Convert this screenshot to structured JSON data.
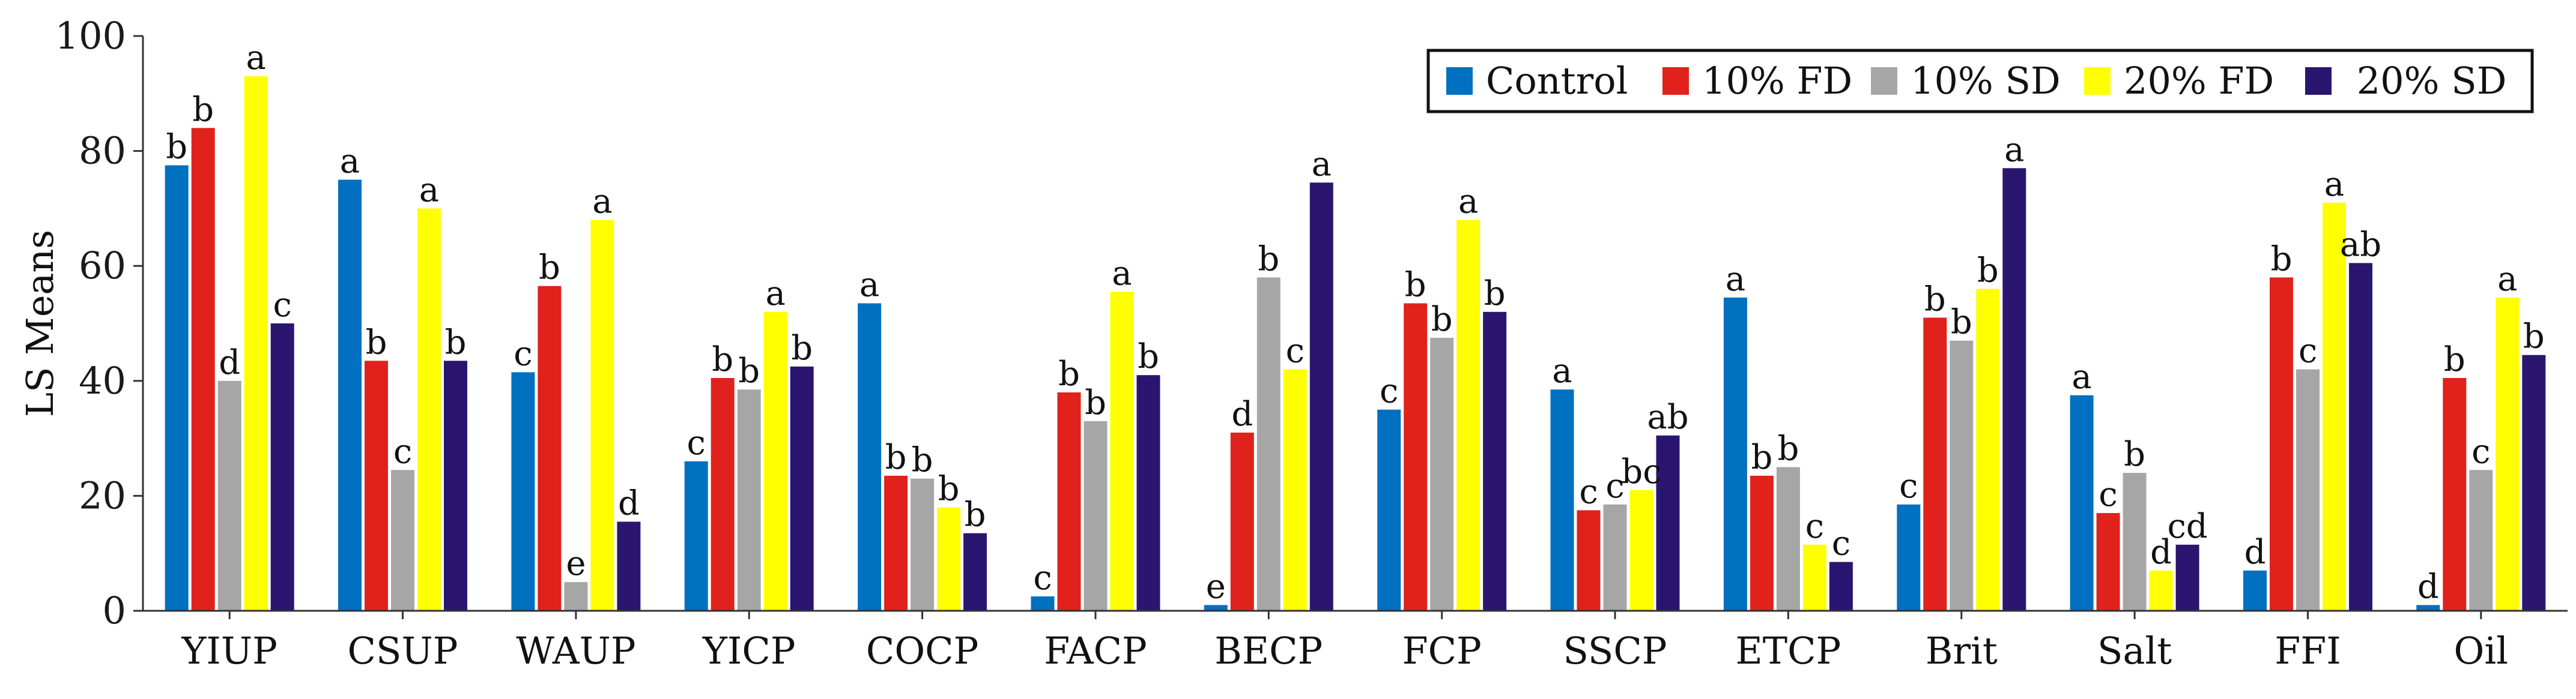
{
  "chart_data": {
    "type": "bar",
    "title": "",
    "xlabel": "",
    "ylabel": "LS Means",
    "ylim": [
      0,
      100
    ],
    "yticks": [
      0,
      20,
      40,
      60,
      80,
      100
    ],
    "grid": false,
    "legend_position": "top-right",
    "categories": [
      "YIUP",
      "CSUP",
      "WAUP",
      "YICP",
      "COCP",
      "FACP",
      "BECP",
      "FCP",
      "SSCP",
      "ETCP",
      "Brit",
      "Salt",
      "FFI",
      "Oil"
    ],
    "series": [
      {
        "name": "Control",
        "color": "#0070C0",
        "values": [
          77.5,
          75,
          41.5,
          26,
          53.5,
          2.5,
          1,
          35,
          38.5,
          54.5,
          18.5,
          37.5,
          7,
          1
        ],
        "letters": [
          "b",
          "a",
          "c",
          "c",
          "a",
          "c",
          "e",
          "c",
          "a",
          "a",
          "c",
          "a",
          "d",
          "d"
        ]
      },
      {
        "name": "10% FD",
        "color": "#E0211C",
        "values": [
          84,
          43.5,
          56.5,
          40.5,
          23.5,
          38,
          31,
          53.5,
          17.5,
          23.5,
          51,
          17,
          58,
          40.5
        ],
        "letters": [
          "b",
          "b",
          "b",
          "b",
          "b",
          "b",
          "d",
          "b",
          "c",
          "b",
          "b",
          "c",
          "b",
          "b"
        ]
      },
      {
        "name": "10% SD",
        "color": "#A6A6A6",
        "values": [
          40,
          24.5,
          5,
          38.5,
          23,
          33,
          58,
          47.5,
          18.5,
          25,
          47,
          24,
          42,
          24.5
        ],
        "letters": [
          "d",
          "c",
          "e",
          "b",
          "b",
          "b",
          "b",
          "b",
          "c",
          "b",
          "b",
          "b",
          "c",
          "c"
        ]
      },
      {
        "name": "20% FD",
        "color": "#FFFF00",
        "values": [
          93,
          70,
          68,
          52,
          18,
          55.5,
          42,
          68,
          21,
          11.5,
          56,
          7,
          71,
          54.5
        ],
        "letters": [
          "a",
          "a",
          "a",
          "a",
          "b",
          "a",
          "c",
          "a",
          "bc",
          "c",
          "b",
          "d",
          "a",
          "a"
        ]
      },
      {
        "name": " 20% SD",
        "color": "#2A1670",
        "values": [
          50,
          43.5,
          15.5,
          42.5,
          13.5,
          41,
          74.5,
          52,
          30.5,
          8.5,
          77,
          11.5,
          60.5,
          44.5
        ],
        "letters": [
          "c",
          "b",
          "d",
          "b",
          "b",
          "b",
          "a",
          "b",
          "ab",
          "c",
          "a",
          "cd",
          "ab",
          "b"
        ]
      }
    ]
  }
}
